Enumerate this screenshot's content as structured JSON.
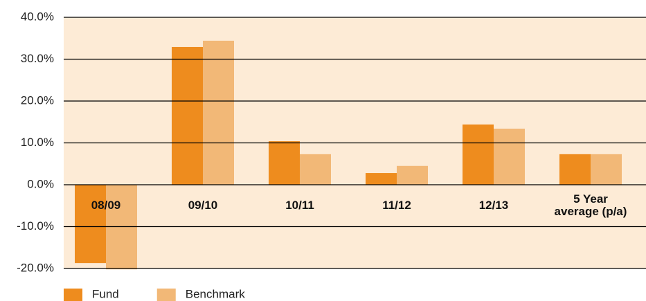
{
  "chart_data": {
    "type": "bar",
    "categories": [
      "08/09",
      "09/10",
      "10/11",
      "11/12",
      "12/13",
      "5 Year\naverage (p/a)"
    ],
    "series": [
      {
        "name": "Fund",
        "color": "#ee8c1e",
        "values": [
          -18.7,
          32.9,
          10.4,
          2.8,
          14.4,
          7.3
        ]
      },
      {
        "name": "Benchmark",
        "color": "#f2b877",
        "values": [
          -20.2,
          34.4,
          7.3,
          4.5,
          13.4,
          7.3
        ]
      }
    ],
    "ylim": [
      -20,
      40
    ],
    "yticks": [
      {
        "value": -20,
        "label": "-20.0%"
      },
      {
        "value": -10,
        "label": "-10.0%"
      },
      {
        "value": 0,
        "label": "0.0%"
      },
      {
        "value": 10,
        "label": "10.0%"
      },
      {
        "value": 20,
        "label": "20.0%"
      },
      {
        "value": 30,
        "label": "30.0%"
      },
      {
        "value": 40,
        "label": "40.0%"
      }
    ],
    "grid": true,
    "legend": "bottom"
  }
}
